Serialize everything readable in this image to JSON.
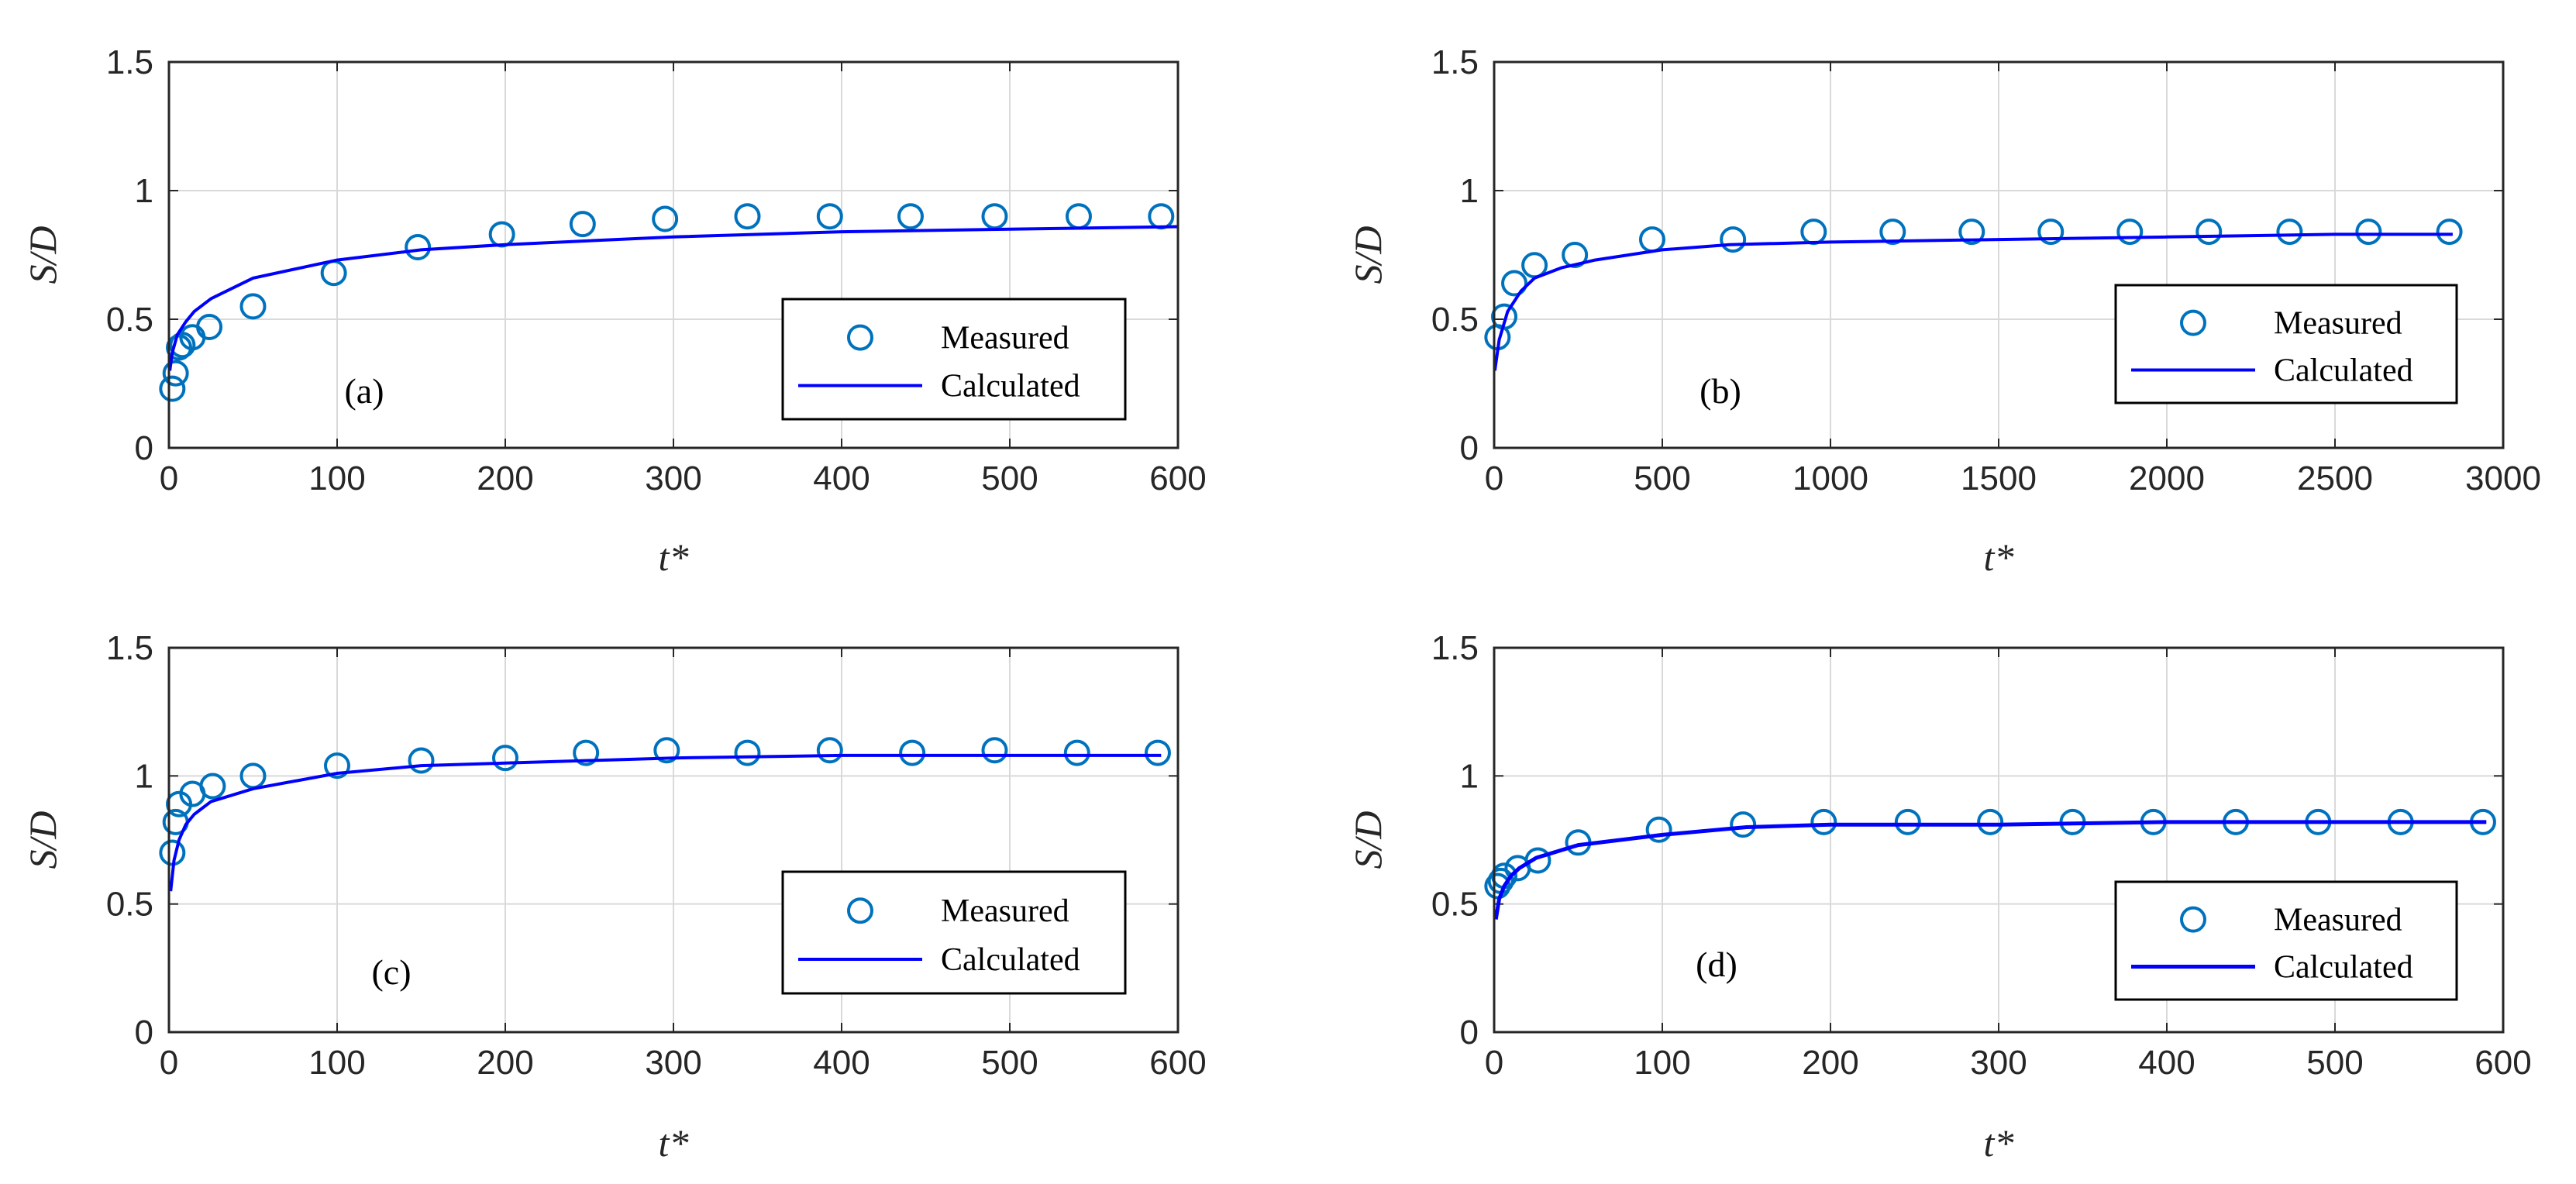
{
  "colors": {
    "measured": "#0072BD",
    "calculated": "#0000FF",
    "grid": "#d9d9d9",
    "axis": "#262626"
  },
  "chart_data": [
    {
      "type": "line",
      "panel_label": "(a)",
      "xlabel": "t*",
      "ylabel": "S/D",
      "xlim": [
        0,
        600
      ],
      "ylim": [
        0,
        1.5
      ],
      "xticks": [
        "0",
        "100",
        "200",
        "300",
        "400",
        "500",
        "600"
      ],
      "yticks": [
        "0",
        "0.5",
        "1",
        "1.5"
      ],
      "grid": true,
      "legend_position": "lower-right",
      "series": [
        {
          "name": "Measured",
          "style": "markers",
          "x": [
            2,
            4,
            6,
            8,
            14,
            24,
            50,
            98,
            148,
            198,
            246,
            295,
            344,
            393,
            441,
            491,
            541,
            590
          ],
          "y": [
            0.23,
            0.29,
            0.39,
            0.4,
            0.43,
            0.47,
            0.55,
            0.68,
            0.78,
            0.83,
            0.87,
            0.89,
            0.9,
            0.9,
            0.9,
            0.9,
            0.9,
            0.9
          ]
        },
        {
          "name": "Calculated",
          "style": "line",
          "x": [
            0.5,
            2,
            5,
            10,
            15,
            25,
            50,
            100,
            150,
            200,
            300,
            400,
            500,
            600
          ],
          "y": [
            0.3,
            0.37,
            0.44,
            0.49,
            0.53,
            0.58,
            0.66,
            0.73,
            0.77,
            0.79,
            0.82,
            0.84,
            0.85,
            0.86
          ]
        }
      ]
    },
    {
      "type": "line",
      "panel_label": "(b)",
      "xlabel": "t*",
      "ylabel": "S/D",
      "xlim": [
        0,
        3000
      ],
      "ylim": [
        0,
        1.5
      ],
      "xticks": [
        "0",
        "500",
        "1000",
        "1500",
        "2000",
        "2500",
        "3000"
      ],
      "yticks": [
        "0",
        "0.5",
        "1",
        "1.5"
      ],
      "grid": true,
      "legend_position": "lower-right",
      "series": [
        {
          "name": "Measured",
          "style": "markers",
          "x": [
            10,
            30,
            60,
            120,
            240,
            470,
            710,
            950,
            1185,
            1420,
            1655,
            1890,
            2125,
            2365,
            2600,
            2840
          ],
          "y": [
            0.43,
            0.51,
            0.64,
            0.71,
            0.75,
            0.81,
            0.81,
            0.84,
            0.84,
            0.84,
            0.84,
            0.84,
            0.84,
            0.84,
            0.84,
            0.84
          ]
        },
        {
          "name": "Calculated",
          "style": "line",
          "x": [
            2,
            15,
            40,
            80,
            120,
            200,
            300,
            500,
            700,
            1000,
            1500,
            2000,
            2500,
            2850
          ],
          "y": [
            0.3,
            0.42,
            0.53,
            0.61,
            0.66,
            0.7,
            0.73,
            0.77,
            0.79,
            0.8,
            0.81,
            0.82,
            0.83,
            0.83
          ]
        }
      ]
    },
    {
      "type": "line",
      "panel_label": "(c)",
      "xlabel": "t*",
      "ylabel": "S/D",
      "xlim": [
        0,
        600
      ],
      "ylim": [
        0,
        1.5
      ],
      "xticks": [
        "0",
        "100",
        "200",
        "300",
        "400",
        "500",
        "600"
      ],
      "yticks": [
        "0",
        "0.5",
        "1",
        "1.5"
      ],
      "grid": true,
      "legend_position": "lower-right",
      "series": [
        {
          "name": "Measured",
          "style": "markers",
          "x": [
            2,
            4,
            6,
            14,
            26,
            50,
            100,
            150,
            200,
            248,
            296,
            344,
            393,
            442,
            491,
            540,
            588
          ],
          "y": [
            0.7,
            0.82,
            0.89,
            0.93,
            0.96,
            1.0,
            1.04,
            1.06,
            1.07,
            1.09,
            1.1,
            1.09,
            1.1,
            1.09,
            1.1,
            1.09,
            1.09
          ]
        },
        {
          "name": "Calculated",
          "style": "line",
          "x": [
            1,
            3,
            6,
            10,
            15,
            25,
            50,
            100,
            150,
            200,
            300,
            400,
            500,
            590
          ],
          "y": [
            0.55,
            0.67,
            0.75,
            0.81,
            0.85,
            0.9,
            0.95,
            1.01,
            1.04,
            1.05,
            1.07,
            1.08,
            1.08,
            1.08
          ]
        }
      ]
    },
    {
      "type": "line",
      "panel_label": "(d)",
      "xlabel": "t*",
      "ylabel": "S/D",
      "xlim": [
        0,
        600
      ],
      "ylim": [
        0,
        1.5
      ],
      "xticks": [
        "0",
        "100",
        "200",
        "300",
        "400",
        "500",
        "600"
      ],
      "yticks": [
        "0",
        "0.5",
        "1",
        "1.5"
      ],
      "grid": true,
      "legend_position": "lower-right",
      "series": [
        {
          "name": "Measured",
          "style": "markers",
          "x": [
            2,
            4,
            6,
            14,
            26,
            50,
            98,
            148,
            196,
            246,
            295,
            344,
            392,
            441,
            490,
            539,
            588
          ],
          "y": [
            0.57,
            0.59,
            0.61,
            0.64,
            0.67,
            0.74,
            0.79,
            0.81,
            0.82,
            0.82,
            0.82,
            0.82,
            0.82,
            0.82,
            0.82,
            0.82,
            0.82
          ]
        },
        {
          "name": "Calculated",
          "style": "line",
          "x": [
            1,
            3,
            6,
            10,
            15,
            25,
            50,
            100,
            150,
            200,
            300,
            400,
            500,
            590
          ],
          "y": [
            0.44,
            0.52,
            0.57,
            0.61,
            0.64,
            0.68,
            0.73,
            0.77,
            0.8,
            0.81,
            0.81,
            0.82,
            0.82,
            0.82
          ]
        }
      ]
    }
  ]
}
